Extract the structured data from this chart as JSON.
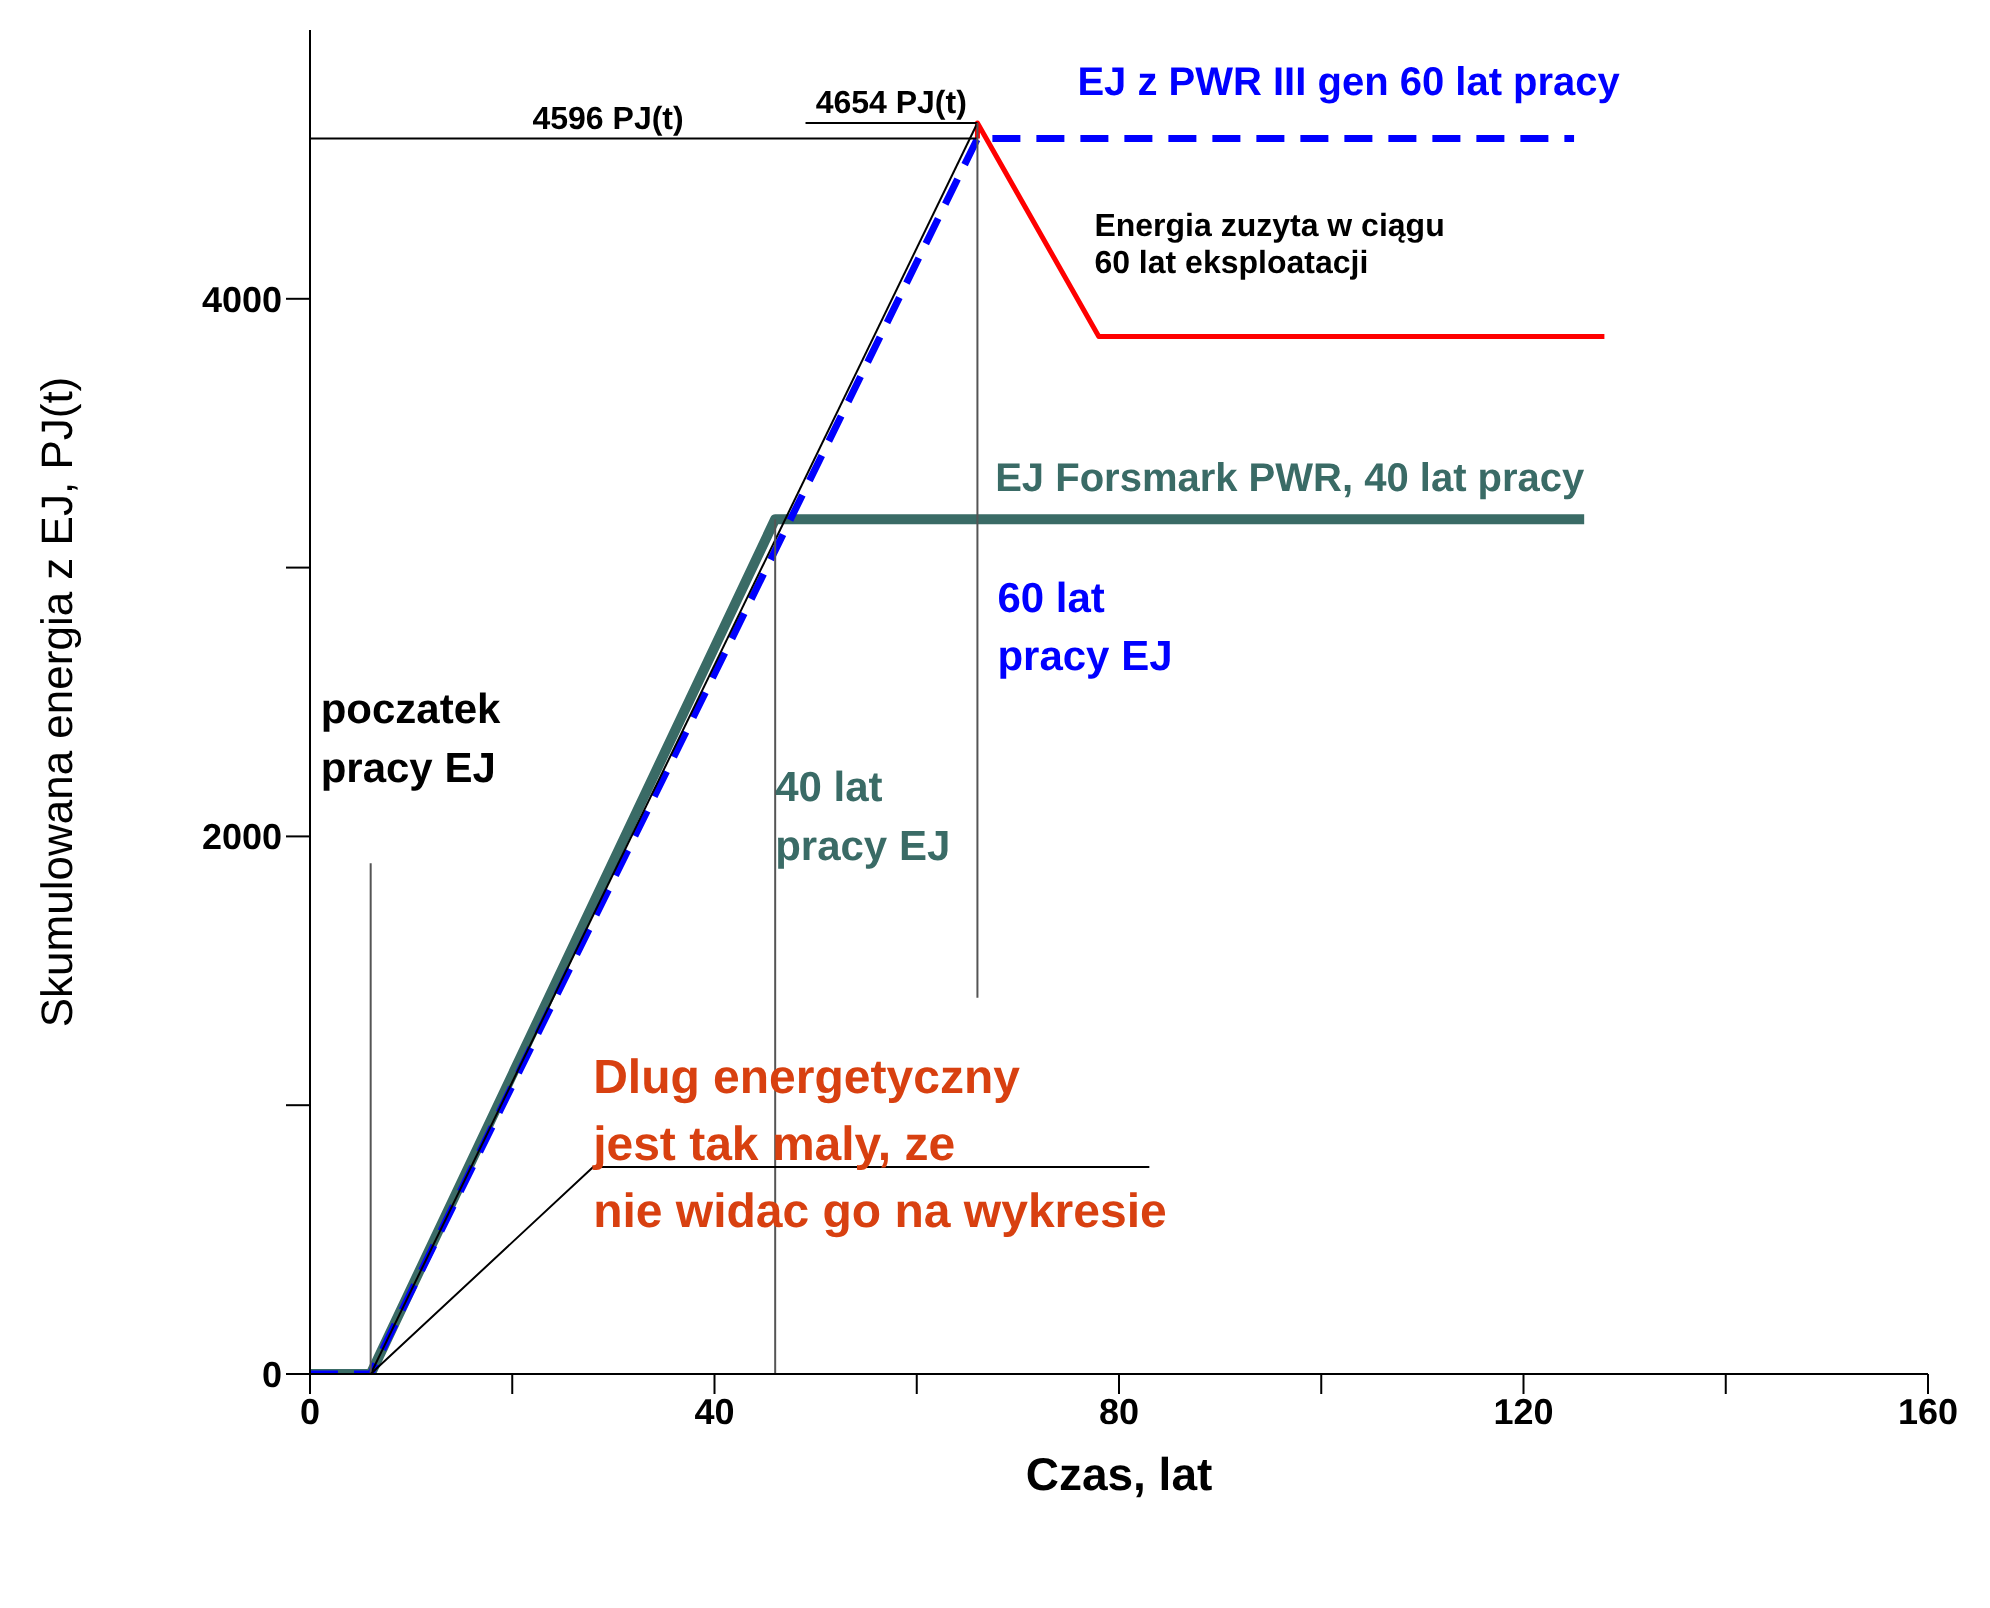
{
  "chart_data": {
    "type": "line",
    "xlabel": "Czas, lat",
    "ylabel": "Skumulowana energia z EJ, PJ(t)",
    "xlim": [
      0,
      160
    ],
    "ylim": [
      0,
      5000
    ],
    "xticks": [
      0,
      {
        "value": 20,
        "label": null
      },
      40,
      {
        "value": 60,
        "label": null
      },
      80,
      {
        "value": 100,
        "label": null
      },
      120,
      {
        "value": 140,
        "label": null
      },
      160
    ],
    "yticks": [
      0,
      {
        "value": 1000,
        "label": null
      },
      2000,
      {
        "value": 3000,
        "label": null
      },
      4000
    ],
    "grid": false,
    "marker": "none",
    "series": [
      {
        "name": "EJ Forsmark PWR, 40 lat pracy",
        "color": "#3a6b66",
        "x": [
          0,
          6,
          46,
          126
        ],
        "values": [
          0,
          0,
          3180,
          3180
        ]
      },
      {
        "name": "EJ z PWR III gen 60 lat pracy",
        "color": "#0000ff",
        "line_style": "dashed",
        "x": [
          0,
          6,
          66,
          125
        ],
        "values": [
          0,
          0,
          4596,
          4596
        ]
      },
      {
        "name": "Energia zuzyta w ciągu\n60 lat eksploatacji",
        "color": "#ff0000",
        "x": [
          66,
          66,
          78,
          128
        ],
        "values": [
          4596,
          4654,
          3860,
          3860
        ]
      },
      {
        "color": "#000000",
        "x": [
          6,
          66
        ],
        "values": [
          0,
          4654
        ]
      },
      {
        "color": "#000000",
        "x": [
          0,
          66
        ],
        "values": [
          4596,
          4596
        ]
      },
      {
        "color": "#000000",
        "x": [
          49,
          66
        ],
        "values": [
          4654,
          4654
        ]
      },
      {
        "color": "#555555",
        "x": [
          6,
          6
        ],
        "values": [
          0,
          1900
        ]
      },
      {
        "color": "#555555",
        "x": [
          46,
          46
        ],
        "values": [
          0,
          3180
        ]
      },
      {
        "color": "#555555",
        "x": [
          66,
          66
        ],
        "values": [
          1400,
          4654
        ]
      },
      {
        "color": "#000000",
        "x": [
          6,
          28,
          83
        ],
        "values": [
          0,
          770,
          770
        ]
      }
    ],
    "annotations": [
      {
        "text": "4596 PJ(t)",
        "x": 22,
        "y": 4596
      },
      {
        "text": "4654 PJ(t)",
        "x": 50,
        "y": 4654
      },
      {
        "text": "poczatek\npracy EJ",
        "x": 6,
        "y": 1900
      },
      {
        "text": "40 lat\npracy EJ",
        "x": 46,
        "y": 2250
      },
      {
        "text": "60 lat\npracy EJ",
        "x": 66,
        "y": 3000
      },
      {
        "text": "Dlug energetyczny\njest tak maly, ze\nnie widac go na wykresie",
        "x": 28,
        "y": 770
      }
    ]
  }
}
